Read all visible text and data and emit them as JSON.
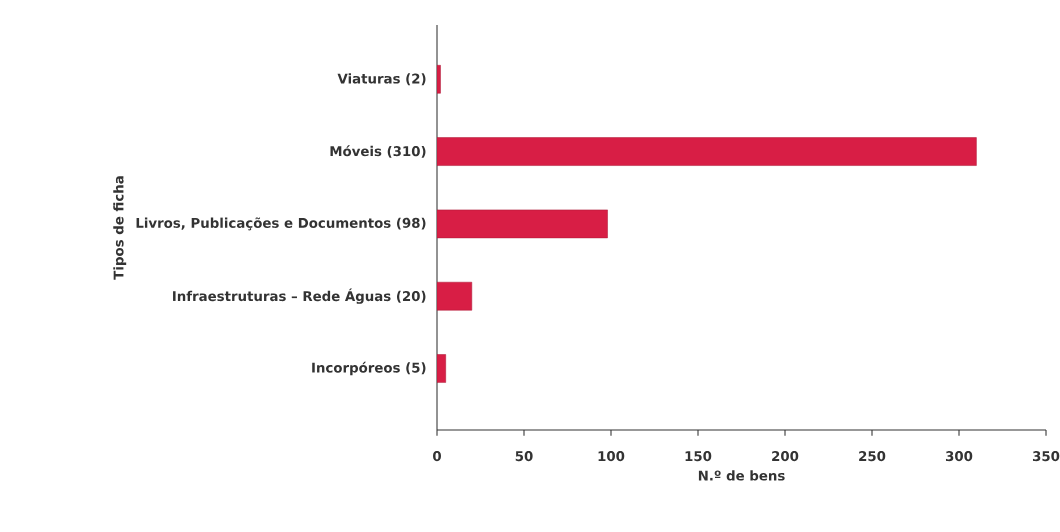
{
  "chart_data": {
    "type": "bar",
    "orientation": "horizontal",
    "xlabel": "N.º de bens",
    "ylabel": "Tipos de ficha",
    "categories": [
      "Viaturas (2)",
      "Móveis (310)",
      "Livros, Publicações e Documentos (98)",
      "Infraestruturas – Rede Águas (20)",
      "Incorpóreos (5)"
    ],
    "values": [
      2,
      310,
      98,
      20,
      5
    ],
    "color": "#d81e45",
    "xlim": [
      0,
      350
    ],
    "xticks": [
      0,
      50,
      100,
      150,
      200,
      250,
      300,
      350
    ],
    "grid": false
  }
}
